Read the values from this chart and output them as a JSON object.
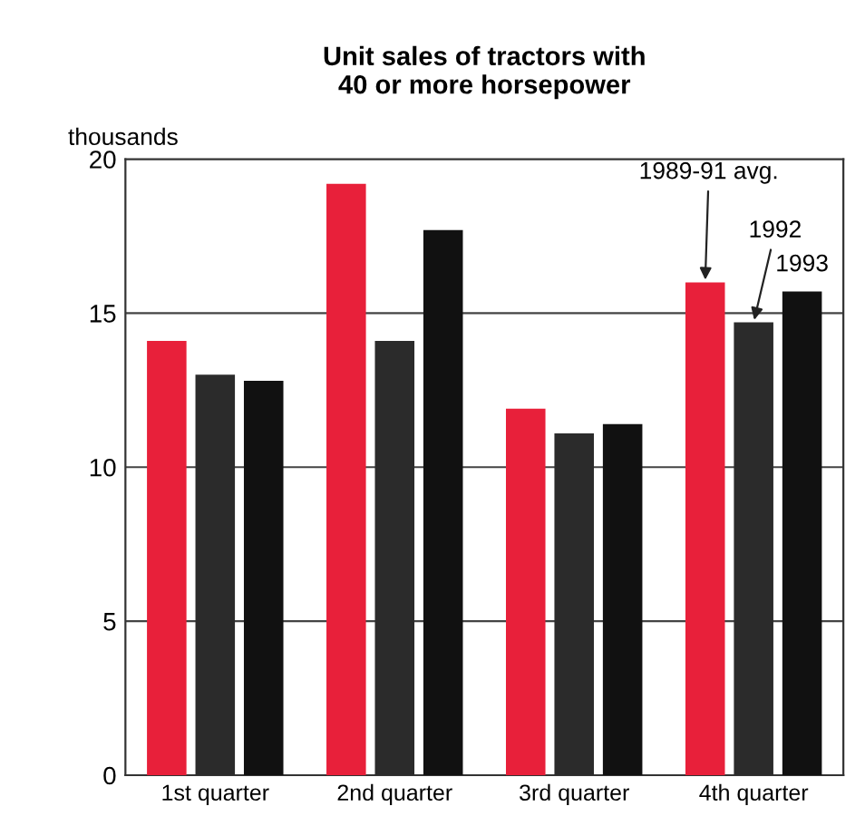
{
  "chart_data": {
    "type": "bar",
    "title": "Unit sales of tractors with\n40 or more horsepower",
    "ylabel": "thousands",
    "categories": [
      "1st quarter",
      "2nd quarter",
      "3rd quarter",
      "4th quarter"
    ],
    "series": [
      {
        "name": "1989-91 avg.",
        "color": "#e8203a",
        "values": [
          14.1,
          19.2,
          11.9,
          16.0
        ]
      },
      {
        "name": "1992",
        "color": "#2b2b2b",
        "values": [
          13.0,
          14.1,
          11.1,
          14.7
        ]
      },
      {
        "name": "1993",
        "color": "#111111",
        "values": [
          12.8,
          17.7,
          11.4,
          15.7
        ]
      }
    ],
    "ylim": [
      0,
      20
    ],
    "yticks": [
      0,
      5,
      10,
      15,
      20
    ],
    "grid": "y"
  }
}
